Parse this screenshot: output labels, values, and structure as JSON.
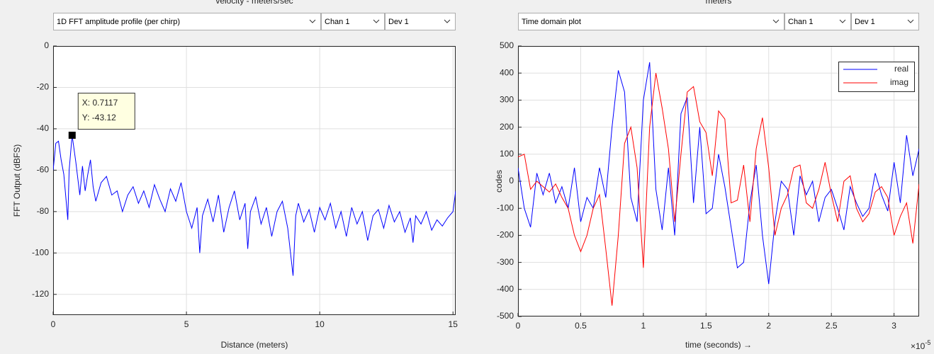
{
  "chart_data": [
    {
      "type": "line",
      "header_title": "velocity - meters/sec",
      "controls": {
        "plot_type": "1D FFT amplitude profile (per chirp)",
        "channel": "Chan 1",
        "device": "Dev 1"
      },
      "x_label": "Distance (meters)",
      "y_label": "FFT Output (dBFS)",
      "xlim": [
        0,
        15.1
      ],
      "ylim": [
        -130,
        0
      ],
      "xticks": [
        0,
        5,
        10,
        15
      ],
      "yticks": [
        0,
        -20,
        -40,
        -60,
        -80,
        -100,
        -120
      ],
      "grid": true,
      "color": "#0000ff",
      "x": [
        0,
        0.1,
        0.2,
        0.3,
        0.4,
        0.55,
        0.6,
        0.7117,
        0.85,
        1.0,
        1.1,
        1.2,
        1.3,
        1.4,
        1.5,
        1.6,
        1.8,
        2.0,
        2.2,
        2.4,
        2.6,
        2.8,
        3.0,
        3.2,
        3.4,
        3.6,
        3.8,
        4.0,
        4.2,
        4.4,
        4.6,
        4.8,
        5.0,
        5.2,
        5.4,
        5.5,
        5.6,
        5.8,
        6.0,
        6.2,
        6.4,
        6.6,
        6.8,
        7.0,
        7.2,
        7.3,
        7.4,
        7.6,
        7.8,
        8.0,
        8.2,
        8.4,
        8.6,
        8.8,
        9.0,
        9.1,
        9.2,
        9.4,
        9.6,
        9.8,
        10.0,
        10.2,
        10.4,
        10.6,
        10.8,
        11.0,
        11.2,
        11.4,
        11.6,
        11.8,
        12.0,
        12.2,
        12.4,
        12.6,
        12.8,
        13.0,
        13.2,
        13.4,
        13.5,
        13.6,
        13.8,
        14.0,
        14.2,
        14.4,
        14.6,
        14.8,
        15.0,
        15.1
      ],
      "values": [
        -60,
        -47,
        -46,
        -55,
        -62,
        -84,
        -60,
        -43.12,
        -56,
        -72,
        -58,
        -70,
        -62,
        -55,
        -68,
        -75,
        -66,
        -63,
        -72,
        -70,
        -80,
        -72,
        -68,
        -76,
        -70,
        -78,
        -67,
        -74,
        -80,
        -69,
        -75,
        -66,
        -80,
        -88,
        -78,
        -100,
        -82,
        -74,
        -85,
        -72,
        -90,
        -78,
        -70,
        -84,
        -76,
        -98,
        -80,
        -73,
        -86,
        -78,
        -92,
        -80,
        -75,
        -88,
        -111,
        -82,
        -76,
        -85,
        -79,
        -90,
        -78,
        -84,
        -76,
        -88,
        -80,
        -92,
        -78,
        -86,
        -80,
        -94,
        -82,
        -79,
        -88,
        -77,
        -85,
        -80,
        -90,
        -83,
        -95,
        -82,
        -86,
        -80,
        -89,
        -84,
        -87,
        -83,
        -80,
        -70
      ],
      "datatip": {
        "x": 0.7117,
        "y": -43.12,
        "x_label": "X: 0.7117",
        "y_label": "Y: -43.12"
      }
    },
    {
      "type": "line",
      "header_title": "meters",
      "controls": {
        "plot_type": "Time domain plot",
        "channel": "Chan 1",
        "device": "Dev 1"
      },
      "x_label": "time  (seconds) →",
      "y_label": "codes",
      "x_exponent_base": "×10",
      "x_exponent": "-5",
      "xlim": [
        0,
        3.2
      ],
      "ylim": [
        -500,
        500
      ],
      "xticks": [
        0,
        0.5,
        1,
        1.5,
        2,
        2.5,
        3
      ],
      "yticks": [
        -500,
        -400,
        -300,
        -200,
        -100,
        0,
        100,
        200,
        300,
        400,
        500
      ],
      "grid": true,
      "legend": "upper right",
      "x": [
        0,
        0.05,
        0.1,
        0.15,
        0.2,
        0.25,
        0.3,
        0.35,
        0.4,
        0.45,
        0.5,
        0.55,
        0.6,
        0.65,
        0.7,
        0.75,
        0.8,
        0.85,
        0.9,
        0.95,
        1.0,
        1.05,
        1.1,
        1.15,
        1.2,
        1.25,
        1.3,
        1.35,
        1.4,
        1.45,
        1.5,
        1.55,
        1.6,
        1.65,
        1.7,
        1.75,
        1.8,
        1.85,
        1.9,
        1.95,
        2.0,
        2.05,
        2.1,
        2.15,
        2.2,
        2.25,
        2.3,
        2.35,
        2.4,
        2.45,
        2.5,
        2.55,
        2.6,
        2.65,
        2.7,
        2.75,
        2.8,
        2.85,
        2.9,
        2.95,
        3.0,
        3.05,
        3.1,
        3.15,
        3.2
      ],
      "series": [
        {
          "name": "real",
          "color": "#0000ff",
          "values": [
            50,
            -100,
            -170,
            30,
            -50,
            30,
            -80,
            -20,
            -100,
            50,
            -150,
            -60,
            -100,
            50,
            -60,
            200,
            410,
            330,
            -60,
            -150,
            300,
            440,
            -30,
            -180,
            50,
            -200,
            250,
            310,
            -80,
            200,
            -120,
            -100,
            100,
            -20,
            -170,
            -320,
            -300,
            -80,
            60,
            -200,
            -380,
            -150,
            0,
            -30,
            -200,
            20,
            -50,
            0,
            -150,
            -60,
            -30,
            -100,
            -180,
            -20,
            -80,
            -130,
            -100,
            30,
            -50,
            -110,
            70,
            -80,
            170,
            20,
            120
          ]
        },
        {
          "name": "imag",
          "color": "#ff0000",
          "values": [
            90,
            100,
            -30,
            0,
            -20,
            -40,
            -10,
            -60,
            -100,
            -200,
            -260,
            -200,
            -100,
            -50,
            -250,
            -460,
            -200,
            140,
            200,
            50,
            -320,
            200,
            400,
            270,
            120,
            -150,
            100,
            330,
            350,
            220,
            180,
            20,
            260,
            230,
            -80,
            -70,
            60,
            -150,
            120,
            235,
            50,
            -200,
            -100,
            -50,
            50,
            60,
            -80,
            -100,
            -30,
            70,
            -50,
            -150,
            0,
            20,
            -100,
            -150,
            -120,
            -40,
            -20,
            -60,
            -200,
            -130,
            -80,
            -230,
            -10
          ]
        }
      ]
    }
  ]
}
